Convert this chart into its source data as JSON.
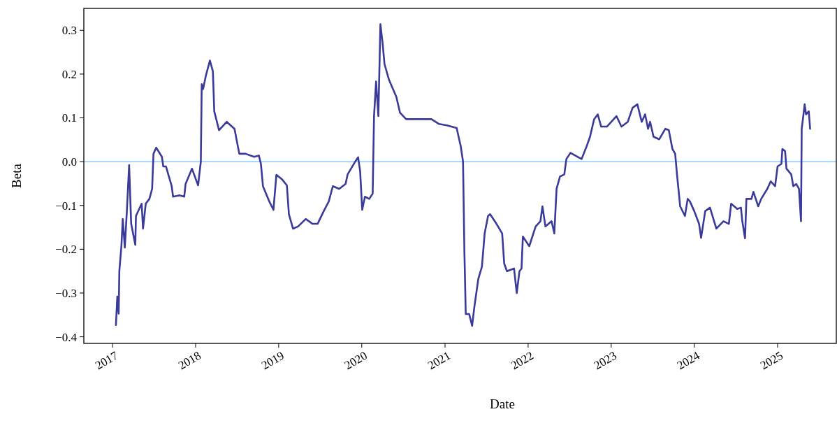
{
  "chart_data": {
    "type": "line",
    "xlabel": "Date",
    "ylabel": "Beta",
    "xlim": [
      "2016-08-28",
      "2025-09-16"
    ],
    "ylim": [
      -0.415,
      0.35
    ],
    "xticks": [
      {
        "value": "2017-01-01",
        "label": "2017"
      },
      {
        "value": "2018-01-01",
        "label": "2018"
      },
      {
        "value": "2019-01-01",
        "label": "2019"
      },
      {
        "value": "2020-01-01",
        "label": "2020"
      },
      {
        "value": "2021-01-01",
        "label": "2021"
      },
      {
        "value": "2022-01-01",
        "label": "2022"
      },
      {
        "value": "2023-01-01",
        "label": "2023"
      },
      {
        "value": "2024-01-01",
        "label": "2024"
      },
      {
        "value": "2025-01-01",
        "label": "2025"
      }
    ],
    "yticks": [
      -0.4,
      -0.3,
      -0.2,
      -0.1,
      {
        "value": 0,
        "label": "0.0"
      },
      0.1,
      0.2,
      0.3
    ],
    "grid": false,
    "line_style": "solid",
    "marker": "none",
    "ref_lines": [
      {
        "axis": "y",
        "value": 0,
        "color": "#8cc8ff"
      }
    ],
    "series": [
      {
        "color": "#3a3a9a",
        "x": [
          "2017-01-16",
          "2017-01-22",
          "2017-01-28",
          "2017-01-31",
          "2017-02-09",
          "2017-02-15",
          "2017-02-24",
          "2017-03-05",
          "2017-03-15",
          "2017-03-24",
          "2017-04-11",
          "2017-04-14",
          "2017-05-09",
          "2017-05-15",
          "2017-05-27",
          "2017-06-12",
          "2017-06-24",
          "2017-06-30",
          "2017-07-12",
          "2017-08-06",
          "2017-08-12",
          "2017-08-24",
          "2017-09-18",
          "2017-09-24",
          "2017-10-22",
          "2017-11-12",
          "2017-11-18",
          "2017-12-16",
          "2018-01-12",
          "2018-01-24",
          "2018-01-28",
          "2018-02-03",
          "2018-02-15",
          "2018-03-05",
          "2018-03-18",
          "2018-03-24",
          "2018-04-14",
          "2018-05-18",
          "2018-06-21",
          "2018-07-12",
          "2018-08-09",
          "2018-09-15",
          "2018-10-06",
          "2018-10-15",
          "2018-10-24",
          "2018-11-21",
          "2018-12-09",
          "2018-12-22",
          "2019-01-15",
          "2019-02-06",
          "2019-02-15",
          "2019-03-05",
          "2019-03-27",
          "2019-04-30",
          "2019-05-30",
          "2019-06-21",
          "2019-07-18",
          "2019-08-09",
          "2019-08-27",
          "2019-09-24",
          "2019-10-22",
          "2019-10-31",
          "2019-12-03",
          "2019-12-16",
          "2019-12-25",
          "2020-01-03",
          "2020-01-15",
          "2020-02-03",
          "2020-02-18",
          "2020-02-24",
          "2020-03-04",
          "2020-03-14",
          "2020-03-23",
          "2020-04-01",
          "2020-04-10",
          "2020-04-29",
          "2020-06-01",
          "2020-06-17",
          "2020-07-14",
          "2020-09-07",
          "2020-11-02",
          "2020-12-06",
          "2021-01-09",
          "2021-02-21",
          "2021-03-11",
          "2021-03-21",
          "2021-03-27",
          "2021-04-02",
          "2021-04-17",
          "2021-04-30",
          "2021-05-09",
          "2021-05-27",
          "2021-06-12",
          "2021-06-24",
          "2021-07-09",
          "2021-07-18",
          "2021-08-15",
          "2021-09-09",
          "2021-09-18",
          "2021-09-30",
          "2021-10-31",
          "2021-11-12",
          "2021-11-24",
          "2021-12-03",
          "2021-12-09",
          "2022-01-06",
          "2022-02-03",
          "2022-02-24",
          "2022-03-05",
          "2022-03-18",
          "2022-04-14",
          "2022-04-26",
          "2022-05-06",
          "2022-05-21",
          "2022-06-09",
          "2022-06-18",
          "2022-07-06",
          "2022-08-24",
          "2022-09-15",
          "2022-09-30",
          "2022-10-18",
          "2022-11-03",
          "2022-11-18",
          "2022-12-13",
          "2023-01-24",
          "2023-02-15",
          "2023-03-15",
          "2023-04-05",
          "2023-04-26",
          "2023-05-15",
          "2023-05-30",
          "2023-06-12",
          "2023-06-21",
          "2023-07-06",
          "2023-07-31",
          "2023-08-27",
          "2023-09-11",
          "2023-09-27",
          "2023-10-09",
          "2023-10-18",
          "2023-10-31",
          "2023-11-21",
          "2023-12-03",
          "2023-12-13",
          "2024-01-01",
          "2024-01-22",
          "2024-01-31",
          "2024-02-18",
          "2024-03-10",
          "2024-04-07",
          "2024-05-08",
          "2024-06-01",
          "2024-06-11",
          "2024-07-08",
          "2024-07-24",
          "2024-07-30",
          "2024-08-11",
          "2024-08-17",
          "2024-09-08",
          "2024-09-17",
          "2024-10-08",
          "2024-10-21",
          "2024-11-17",
          "2024-12-02",
          "2024-12-21",
          "2025-01-01",
          "2025-01-18",
          "2025-01-22",
          "2025-02-03",
          "2025-02-09",
          "2025-03-02",
          "2025-03-11",
          "2025-03-24",
          "2025-04-05",
          "2025-04-14",
          "2025-04-17",
          "2025-04-24",
          "2025-04-30",
          "2025-05-06",
          "2025-05-18",
          "2025-05-24"
        ],
        "values": [
          -0.373,
          -0.308,
          -0.347,
          -0.25,
          -0.193,
          -0.131,
          -0.196,
          -0.113,
          -0.008,
          -0.142,
          -0.19,
          -0.124,
          -0.096,
          -0.153,
          -0.096,
          -0.085,
          -0.062,
          0.018,
          0.032,
          0.011,
          -0.011,
          -0.011,
          -0.056,
          -0.08,
          -0.077,
          -0.08,
          -0.051,
          -0.016,
          -0.054,
          0,
          0.177,
          0.166,
          0.196,
          0.231,
          0.206,
          0.115,
          0.072,
          0.091,
          0.075,
          0.018,
          0.018,
          0.011,
          0.014,
          -0.005,
          -0.056,
          -0.091,
          -0.11,
          -0.03,
          -0.04,
          -0.054,
          -0.12,
          -0.153,
          -0.148,
          -0.131,
          -0.142,
          -0.142,
          -0.113,
          -0.091,
          -0.056,
          -0.062,
          -0.051,
          -0.029,
          0,
          0.01,
          -0.022,
          -0.11,
          -0.08,
          -0.085,
          -0.073,
          0.104,
          0.183,
          0.104,
          0.314,
          0.274,
          0.223,
          0.188,
          0.148,
          0.112,
          0.097,
          0.097,
          0.097,
          0.086,
          0.083,
          0.077,
          0.035,
          0,
          -0.204,
          -0.348,
          -0.348,
          -0.375,
          -0.335,
          -0.268,
          -0.24,
          -0.164,
          -0.124,
          -0.12,
          -0.142,
          -0.164,
          -0.233,
          -0.25,
          -0.244,
          -0.3,
          -0.25,
          -0.244,
          -0.171,
          -0.193,
          -0.148,
          -0.136,
          -0.102,
          -0.148,
          -0.136,
          -0.164,
          -0.062,
          -0.034,
          -0.029,
          0.006,
          0.02,
          0.006,
          0.035,
          0.057,
          0.097,
          0.108,
          0.08,
          0.08,
          0.104,
          0.08,
          0.091,
          0.123,
          0.131,
          0.091,
          0.108,
          0.075,
          0.091,
          0.057,
          0.051,
          0.075,
          0.072,
          0.029,
          0.018,
          -0.034,
          -0.102,
          -0.124,
          -0.085,
          -0.091,
          -0.113,
          -0.142,
          -0.174,
          -0.113,
          -0.105,
          -0.153,
          -0.136,
          -0.142,
          -0.096,
          -0.108,
          -0.105,
          -0.136,
          -0.175,
          -0.085,
          -0.085,
          -0.069,
          -0.102,
          -0.085,
          -0.062,
          -0.045,
          -0.056,
          -0.011,
          -0.005,
          0.029,
          0.024,
          -0.016,
          -0.029,
          -0.056,
          -0.051,
          -0.062,
          -0.136,
          0.075,
          0.104,
          0.131,
          0.108,
          0.115,
          0.075
        ]
      }
    ]
  }
}
